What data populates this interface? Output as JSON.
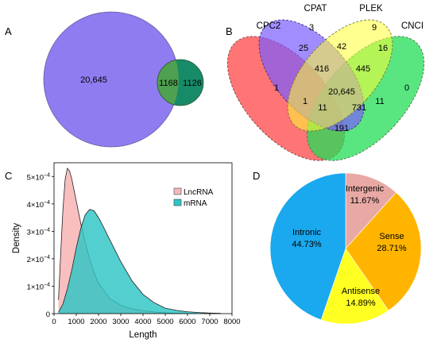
{
  "panels": {
    "a": "A",
    "b": "B",
    "c": "C",
    "d": "D"
  },
  "colors": {
    "venn_big": "#8f7cf0",
    "venn_small_left": "#4fa050",
    "venn_small_right": "#178a68",
    "cpc2": "#ff5c5c",
    "cpat": "#7a5cff",
    "plek": "#ffff33",
    "cnci": "#22dd55",
    "lnc_fill": "#f8b8b8",
    "mrna_fill": "#2ec4c4",
    "pie_intergenic": "#e8a8a4",
    "pie_sense": "#ffb400",
    "pie_antisense": "#ffff22",
    "pie_intronic": "#1aa8ee"
  },
  "chart_data": [
    {
      "type": "venn",
      "panel": "A",
      "sets": [
        {
          "name": "",
          "only": "20,645"
        },
        {
          "name": "",
          "only": "1126"
        }
      ],
      "intersection": "1168"
    },
    {
      "type": "venn",
      "panel": "B",
      "sets": [
        "CPC2",
        "CPAT",
        "PLEK",
        "CNCI"
      ],
      "regions": [
        {
          "sets": [
            "CPC2"
          ],
          "value": "1"
        },
        {
          "sets": [
            "CPAT"
          ],
          "value": "3"
        },
        {
          "sets": [
            "PLEK"
          ],
          "value": "9"
        },
        {
          "sets": [
            "CNCI"
          ],
          "value": "0"
        },
        {
          "sets": [
            "CPC2",
            "CPAT"
          ],
          "value": "25"
        },
        {
          "sets": [
            "CPAT",
            "PLEK"
          ],
          "value": "42"
        },
        {
          "sets": [
            "PLEK",
            "CNCI"
          ],
          "value": "16"
        },
        {
          "sets": [
            "CPC2",
            "CPAT",
            "PLEK"
          ],
          "value": "416"
        },
        {
          "sets": [
            "CPAT",
            "PLEK",
            "CNCI"
          ],
          "value": "445"
        },
        {
          "sets": [
            "CPC2",
            "CPAT",
            "PLEK",
            "CNCI"
          ],
          "value": "20,645"
        },
        {
          "sets": [
            "CPC2",
            "PLEK"
          ],
          "value": "1"
        },
        {
          "sets": [
            "CPC2",
            "PLEK",
            "CNCI"
          ],
          "value": "11"
        },
        {
          "sets": [
            "CPC2",
            "CPAT",
            "CNCI"
          ],
          "value": "731"
        },
        {
          "sets": [
            "CPAT",
            "CNCI"
          ],
          "value": "11"
        },
        {
          "sets": [
            "CPC2",
            "CNCI"
          ],
          "value": "191"
        }
      ]
    },
    {
      "type": "area",
      "panel": "C",
      "xlabel": "Length",
      "ylabel": "Density",
      "xlim": [
        0,
        8000
      ],
      "ylim": [
        0,
        0.00055
      ],
      "x_ticks": [
        "0",
        "1000",
        "2000",
        "3000",
        "4000",
        "5000",
        "6000",
        "7000",
        "8000"
      ],
      "y_tick_labels": [
        {
          "value": 0,
          "base": "0",
          "exp": ""
        },
        {
          "value": 0.0001,
          "base": "1×10",
          "exp": "−4"
        },
        {
          "value": 0.0002,
          "base": "2×10",
          "exp": "−4"
        },
        {
          "value": 0.0003,
          "base": "3×10",
          "exp": "−4"
        },
        {
          "value": 0.0004,
          "base": "4×10",
          "exp": "−4"
        },
        {
          "value": 0.0005,
          "base": "5×10",
          "exp": "−4"
        }
      ],
      "legend": [
        "LncRNA",
        "mRNA"
      ],
      "legend_position": "top-right",
      "series": [
        {
          "name": "LncRNA",
          "x": [
            200,
            300,
            400,
            500,
            600,
            700,
            800,
            900,
            1000,
            1200,
            1400,
            1600,
            1800,
            2000,
            2500,
            3000,
            3500,
            4000,
            4500,
            5000,
            5500,
            6000
          ],
          "y": [
            5e-05,
            0.00022,
            0.00038,
            0.00049,
            0.00053,
            0.00052,
            0.00049,
            0.00045,
            0.00041,
            0.00033,
            0.00026,
            0.0002,
            0.00015,
            0.00011,
            5.5e-05,
            3e-05,
            1.8e-05,
            1e-05,
            6e-06,
            3e-06,
            1.5e-06,
            5e-07
          ]
        },
        {
          "name": "mRNA",
          "x": [
            200,
            400,
            600,
            800,
            1000,
            1200,
            1400,
            1600,
            1800,
            2000,
            2200,
            2500,
            3000,
            3500,
            4000,
            4500,
            5000,
            5500,
            6000,
            6500,
            7000,
            7500
          ],
          "y": [
            5e-06,
            3.5e-05,
            9e-05,
            0.00016,
            0.00024,
            0.00031,
            0.00036,
            0.00038,
            0.000375,
            0.00035,
            0.00032,
            0.00027,
            0.00019,
            0.00012,
            7e-05,
            4e-05,
            2e-05,
            1.2e-05,
            7e-06,
            4e-06,
            2e-06,
            1e-06
          ]
        }
      ]
    },
    {
      "type": "pie",
      "panel": "D",
      "slices": [
        {
          "label": "Intergenic",
          "value": 11.67,
          "text": "11.67%"
        },
        {
          "label": "Sense",
          "value": 28.71,
          "text": "28.71%"
        },
        {
          "label": "Antisense",
          "value": 14.89,
          "text": "14.89%"
        },
        {
          "label": "Intronic",
          "value": 44.73,
          "text": "44.73%"
        }
      ]
    }
  ]
}
